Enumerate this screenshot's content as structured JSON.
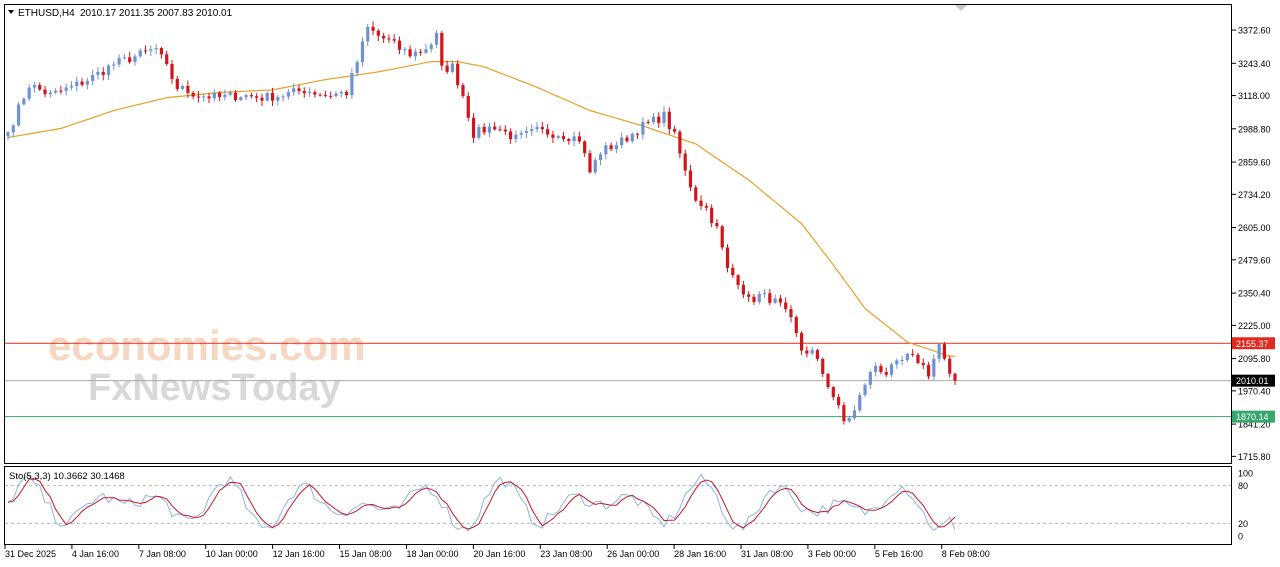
{
  "header": {
    "symbol": "ETHUSD,H4",
    "ohlc": "2010.17 2011.35 2007.83 2010.01"
  },
  "watermark": {
    "line1": "economies.com",
    "line2": "FxNewsToday"
  },
  "colors": {
    "bull": "#6f93d2",
    "bear": "#d0151d",
    "ma": "#e5a02a",
    "resistance": "#e02a1f",
    "support": "#36a66b",
    "current": "#aaaaaa",
    "stoch_main": "#8fb3e6",
    "stoch_signal": "#c31a2a"
  },
  "indicator": {
    "label": "Sto(5,3,3) 10.3662 30.1468",
    "levels": [
      "100",
      "80",
      "20",
      "0"
    ]
  },
  "chart_data": {
    "type": "candlestick",
    "instrument": "ETHUSD",
    "timeframe": "H4",
    "ylim": [
      1690,
      3470
    ],
    "y_ticks": [
      "3372.60",
      "3243.40",
      "3118.00",
      "2988.80",
      "2859.60",
      "2734.20",
      "2605.00",
      "2479.60",
      "2350.40",
      "2225.00",
      "2095.80",
      "1970.40",
      "1841.20",
      "1715.80"
    ],
    "x_ticks": [
      "31 Dec 2025",
      "4 Jan 16:00",
      "7 Jan 08:00",
      "10 Jan 00:00",
      "12 Jan 16:00",
      "15 Jan 08:00",
      "18 Jan 00:00",
      "20 Jan 16:00",
      "23 Jan 08:00",
      "26 Jan 00:00",
      "28 Jan 16:00",
      "31 Jan 08:00",
      "3 Feb 00:00",
      "5 Feb 16:00",
      "8 Feb 08:00"
    ],
    "price_levels": [
      {
        "value": 2155.37,
        "label": "2155.37",
        "role": "resistance"
      },
      {
        "value": 2010.01,
        "label": "2010.01",
        "role": "current"
      },
      {
        "value": 1870.14,
        "label": "1870.14",
        "role": "support"
      }
    ],
    "close_path": [
      [
        0,
        2975
      ],
      [
        4,
        3160
      ],
      [
        8,
        3120
      ],
      [
        12,
        3150
      ],
      [
        16,
        3190
      ],
      [
        20,
        3240
      ],
      [
        24,
        3270
      ],
      [
        28,
        3300
      ],
      [
        32,
        3150
      ],
      [
        36,
        3120
      ],
      [
        40,
        3110
      ],
      [
        44,
        3120
      ],
      [
        48,
        3110
      ],
      [
        52,
        3120
      ],
      [
        56,
        3140
      ],
      [
        60,
        3120
      ],
      [
        64,
        3130
      ],
      [
        66,
        3250
      ],
      [
        68,
        3380
      ],
      [
        70,
        3350
      ],
      [
        72,
        3330
      ],
      [
        74,
        3300
      ],
      [
        76,
        3280
      ],
      [
        78,
        3290
      ],
      [
        80,
        3320
      ],
      [
        81,
        3350
      ],
      [
        82,
        3220
      ],
      [
        84,
        3230
      ],
      [
        86,
        3120
      ],
      [
        88,
        2970
      ],
      [
        92,
        3000
      ],
      [
        96,
        2950
      ],
      [
        100,
        2980
      ],
      [
        104,
        2970
      ],
      [
        108,
        2950
      ],
      [
        110,
        2820
      ],
      [
        112,
        2900
      ],
      [
        116,
        2940
      ],
      [
        120,
        3000
      ],
      [
        124,
        3040
      ],
      [
        126,
        2960
      ],
      [
        128,
        2820
      ],
      [
        130,
        2720
      ],
      [
        132,
        2680
      ],
      [
        134,
        2600
      ],
      [
        136,
        2440
      ],
      [
        138,
        2400
      ],
      [
        140,
        2320
      ],
      [
        142,
        2340
      ],
      [
        144,
        2330
      ],
      [
        146,
        2300
      ],
      [
        148,
        2240
      ],
      [
        150,
        2130
      ],
      [
        152,
        2120
      ],
      [
        154,
        2040
      ],
      [
        156,
        1950
      ],
      [
        158,
        1850
      ],
      [
        160,
        1890
      ],
      [
        162,
        2000
      ],
      [
        164,
        2070
      ],
      [
        166,
        2040
      ],
      [
        168,
        2070
      ],
      [
        170,
        2100
      ],
      [
        172,
        2090
      ],
      [
        174,
        2040
      ],
      [
        176,
        2150
      ],
      [
        178,
        2020
      ],
      [
        179,
        2010
      ]
    ],
    "moving_average": [
      [
        0,
        2955
      ],
      [
        10,
        2990
      ],
      [
        20,
        3060
      ],
      [
        30,
        3110
      ],
      [
        40,
        3130
      ],
      [
        50,
        3140
      ],
      [
        60,
        3180
      ],
      [
        70,
        3210
      ],
      [
        80,
        3250
      ],
      [
        85,
        3250
      ],
      [
        90,
        3230
      ],
      [
        100,
        3150
      ],
      [
        110,
        3060
      ],
      [
        120,
        3000
      ],
      [
        130,
        2930
      ],
      [
        140,
        2790
      ],
      [
        150,
        2620
      ],
      [
        156,
        2460
      ],
      [
        162,
        2290
      ],
      [
        170,
        2160
      ],
      [
        178,
        2105
      ]
    ],
    "stochastic": {
      "name": "Sto(5,3,3)",
      "main": 10.3662,
      "signal": 30.1468,
      "levels": [
        80,
        20
      ],
      "ylim": [
        0,
        100
      ]
    }
  }
}
